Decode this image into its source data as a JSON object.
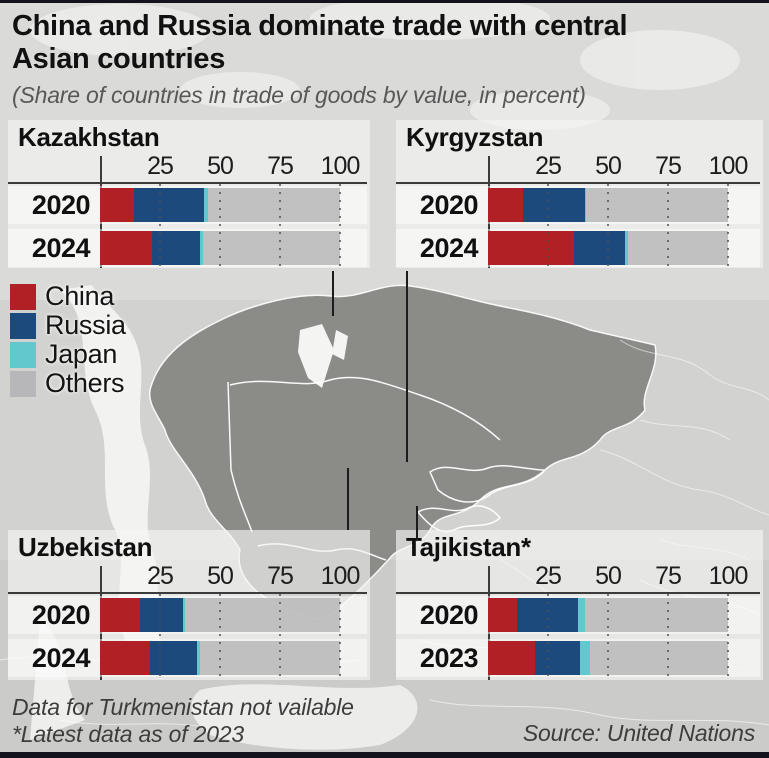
{
  "header": {
    "title_line1": "China and Russia dominate trade with central",
    "title_line2": "Asian countries",
    "subtitle": "(Share of countries in trade of goods by value, in percent)"
  },
  "colors": {
    "china": "#b02025",
    "russia": "#1c4a7c",
    "japan": "#63c8ce",
    "others": "#b7b7b9",
    "axis": "#3b3b3b"
  },
  "legend": {
    "items": [
      {
        "label": "China",
        "color": "#b02025"
      },
      {
        "label": "Russia",
        "color": "#1c4a7c"
      },
      {
        "label": "Japan",
        "color": "#63c8ce"
      },
      {
        "label": "Others",
        "color": "#b7b7b9"
      }
    ]
  },
  "chart_data": [
    {
      "type": "bar",
      "orientation": "horizontal",
      "stacked": true,
      "title": "Kazakhstan",
      "categories": [
        "2020",
        "2024"
      ],
      "series": [
        {
          "name": "China",
          "values": [
            14,
            21.5
          ]
        },
        {
          "name": "Russia",
          "values": [
            29.5,
            20
          ]
        },
        {
          "name": "Japan",
          "values": [
            1.5,
            1.5
          ]
        },
        {
          "name": "Others",
          "values": [
            55,
            57
          ]
        }
      ],
      "xlim": [
        0,
        100
      ],
      "ticks": [
        25,
        50,
        75,
        100
      ],
      "grid": "dotted"
    },
    {
      "type": "bar",
      "orientation": "horizontal",
      "stacked": true,
      "title": "Kyrgyzstan",
      "categories": [
        "2020",
        "2024"
      ],
      "series": [
        {
          "name": "China",
          "values": [
            14.5,
            36
          ]
        },
        {
          "name": "Russia",
          "values": [
            26,
            21
          ]
        },
        {
          "name": "Japan",
          "values": [
            0.5,
            1.5
          ]
        },
        {
          "name": "Others",
          "values": [
            59,
            41.5
          ]
        }
      ],
      "xlim": [
        0,
        100
      ],
      "ticks": [
        25,
        50,
        75,
        100
      ],
      "grid": "dotted"
    },
    {
      "type": "bar",
      "orientation": "horizontal",
      "stacked": true,
      "title": "Uzbekistan",
      "categories": [
        "2020",
        "2024"
      ],
      "series": [
        {
          "name": "China",
          "values": [
            16.5,
            21
          ]
        },
        {
          "name": "Russia",
          "values": [
            18,
            19.5
          ]
        },
        {
          "name": "Japan",
          "values": [
            1,
            1
          ]
        },
        {
          "name": "Others",
          "values": [
            64.5,
            58.5
          ]
        }
      ],
      "xlim": [
        0,
        100
      ],
      "ticks": [
        25,
        50,
        75,
        100
      ],
      "grid": "dotted"
    },
    {
      "type": "bar",
      "orientation": "horizontal",
      "stacked": true,
      "title": "Tajikistan*",
      "categories": [
        "2020",
        "2023"
      ],
      "series": [
        {
          "name": "China",
          "values": [
            12,
            19.5
          ]
        },
        {
          "name": "Russia",
          "values": [
            25.5,
            19
          ]
        },
        {
          "name": "Japan",
          "values": [
            3,
            4
          ]
        },
        {
          "name": "Others",
          "values": [
            59.5,
            57.5
          ]
        }
      ],
      "xlim": [
        0,
        100
      ],
      "ticks": [
        25,
        50,
        75,
        100
      ],
      "grid": "dotted"
    }
  ],
  "footer": {
    "note1": "Data for Turkmenistan not vailable",
    "note2": "*Latest data as of 2023",
    "source": "Source: United Nations"
  }
}
